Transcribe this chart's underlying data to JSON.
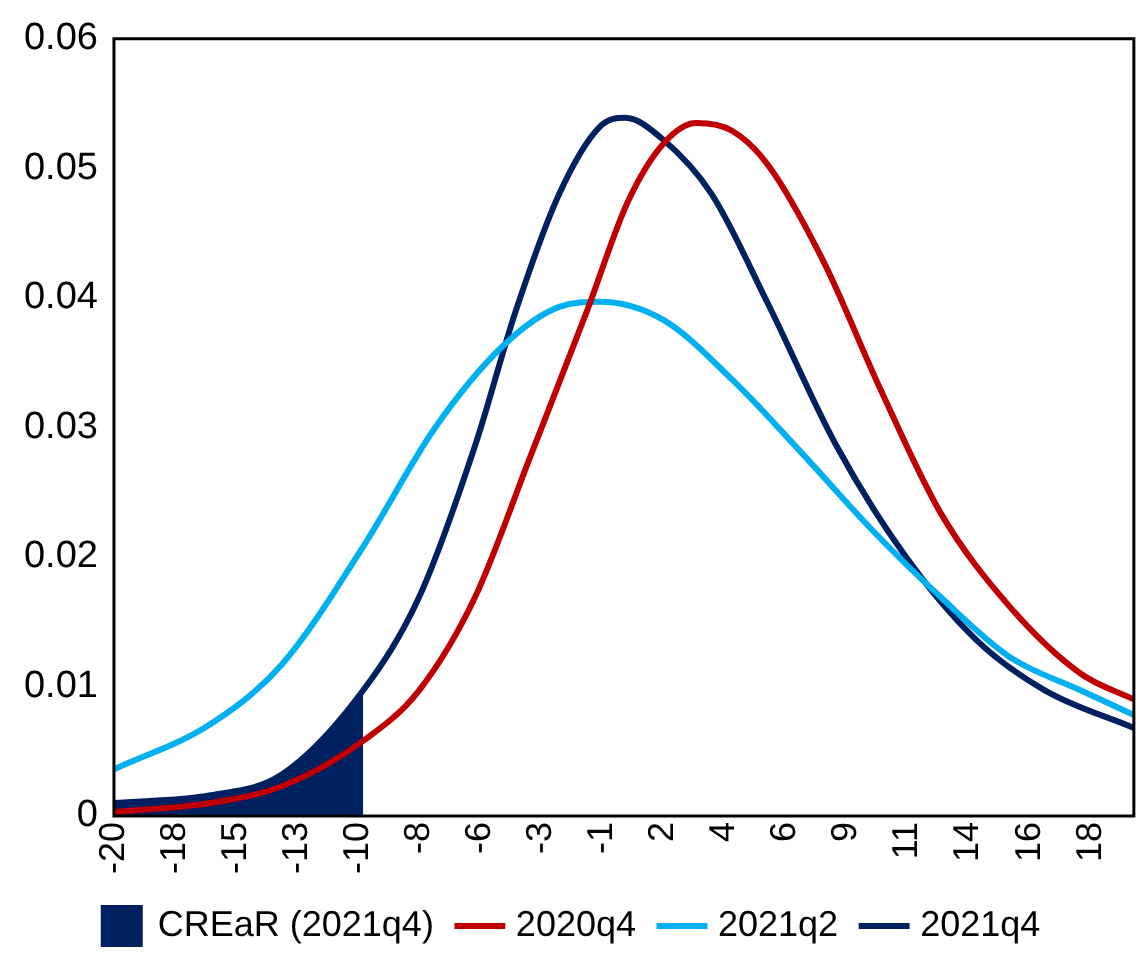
{
  "chart_data": {
    "type": "line",
    "marker": "none",
    "grid": false,
    "legend": "bottom",
    "xlim": [
      -20,
      20.1
    ],
    "xticks": [
      {
        "value": -20,
        "label": "-20"
      },
      {
        "value": -17.6,
        "label": "-18"
      },
      {
        "value": -15.2,
        "label": "-15"
      },
      {
        "value": -12.8,
        "label": "-13"
      },
      {
        "value": -10.4,
        "label": "-10"
      },
      {
        "value": -8,
        "label": "-8"
      },
      {
        "value": -5.6,
        "label": "-6"
      },
      {
        "value": -3.2,
        "label": "-3"
      },
      {
        "value": -0.8,
        "label": "-1"
      },
      {
        "value": 1.6,
        "label": "2"
      },
      {
        "value": 4,
        "label": "4"
      },
      {
        "value": 6.4,
        "label": "6"
      },
      {
        "value": 8.8,
        "label": "9"
      },
      {
        "value": 11.2,
        "label": "11"
      },
      {
        "value": 13.6,
        "label": "14"
      },
      {
        "value": 16,
        "label": "16"
      },
      {
        "value": 18.4,
        "label": "18"
      }
    ],
    "ylim": [
      0,
      0.06
    ],
    "yticks": [
      0,
      0.01,
      0.02,
      0.03,
      0.04,
      0.05,
      0.06
    ],
    "series": [
      {
        "name": "CREaR (2021q4)",
        "type": "area",
        "color": "#002060",
        "x": [
          -20,
          -16.2,
          -13.4,
          -10.2
        ],
        "values": [
          0.001,
          0.0016,
          0.0032,
          0.0097
        ]
      },
      {
        "name": "2020q4",
        "color": "#c00000",
        "x": [
          -20,
          -16.2,
          -13.4,
          -10.2,
          -8,
          -5.8,
          -3.6,
          -1.4,
          0.2,
          1.6,
          2.9,
          4.3,
          5.7,
          7.9,
          10.1,
          12.5,
          15.2,
          18,
          20.1
        ],
        "values": [
          0.0003,
          0.001,
          0.0023,
          0.0058,
          0.0097,
          0.0169,
          0.0279,
          0.039,
          0.0474,
          0.0519,
          0.0535,
          0.0529,
          0.0503,
          0.0428,
          0.0331,
          0.0234,
          0.0162,
          0.011,
          0.009
        ]
      },
      {
        "name": "2021q2",
        "color": "#00b0f0",
        "x": [
          -20,
          -16.2,
          -13.4,
          -10.2,
          -7.4,
          -4.7,
          -2.5,
          -0.9,
          1.6,
          4.3,
          7.1,
          9.8,
          12.5,
          15.2,
          18,
          20.1
        ],
        "values": [
          0.0036,
          0.0071,
          0.0117,
          0.0208,
          0.0299,
          0.0363,
          0.0393,
          0.0397,
          0.0383,
          0.0337,
          0.0279,
          0.0221,
          0.0169,
          0.0123,
          0.0097,
          0.0078
        ]
      },
      {
        "name": "2021q4",
        "color": "#002060",
        "x": [
          -20,
          -16.2,
          -13.4,
          -10.2,
          -8,
          -5.8,
          -4.2,
          -2.5,
          -0.9,
          0.1,
          1.6,
          3.5,
          5.7,
          8.4,
          11.1,
          13.9,
          16.6,
          20.1
        ],
        "values": [
          0.001,
          0.0016,
          0.0032,
          0.0097,
          0.0169,
          0.0286,
          0.039,
          0.048,
          0.0532,
          0.0539,
          0.0522,
          0.048,
          0.0396,
          0.0286,
          0.0201,
          0.0136,
          0.0097,
          0.0068
        ]
      }
    ]
  }
}
